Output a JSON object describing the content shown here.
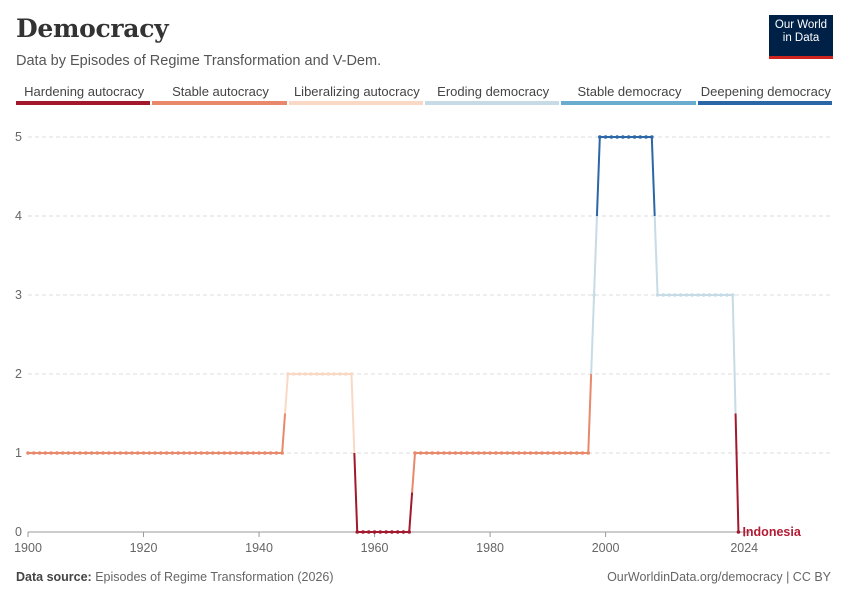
{
  "header": {
    "title": "Democracy",
    "subtitle": "Data by Episodes of Regime Transformation and V-Dem."
  },
  "logo": {
    "line1": "Our World",
    "line2": "in Data"
  },
  "footer": {
    "source_label": "Data source:",
    "source_text": "Episodes of Regime Transformation (2026)",
    "right_text": "OurWorldinData.org/democracy | CC BY"
  },
  "chart_data": {
    "type": "line",
    "title": "Democracy",
    "subtitle": "Data by Episodes of Regime Transformation and V-Dem.",
    "xlabel": "",
    "ylabel": "",
    "xlim": [
      1900,
      2025
    ],
    "ylim": [
      0,
      5
    ],
    "x_ticks": [
      "1900",
      "1920",
      "1940",
      "1960",
      "1980",
      "2000",
      "2024"
    ],
    "y_ticks": [
      "0",
      "1",
      "2",
      "3",
      "4",
      "5"
    ],
    "legend": [
      {
        "label": "Hardening autocracy",
        "value": 0,
        "color": "#a2182d"
      },
      {
        "label": "Stable autocracy",
        "value": 1,
        "color": "#e8896b"
      },
      {
        "label": "Liberalizing autocracy",
        "value": 2,
        "color": "#f9d9c5"
      },
      {
        "label": "Eroding democracy",
        "value": 3,
        "color": "#c6dbe6"
      },
      {
        "label": "Stable democracy",
        "value": 4,
        "color": "#6aaccd"
      },
      {
        "label": "Deepening democracy",
        "value": 5,
        "color": "#2b66a7"
      }
    ],
    "series": [
      {
        "name": "Indonesia",
        "color": "#b31b34",
        "segments": [
          {
            "from": 1900,
            "to": 1944,
            "value": 1
          },
          {
            "from": 1945,
            "to": 1956,
            "value": 2
          },
          {
            "from": 1957,
            "to": 1966,
            "value": 0
          },
          {
            "from": 1967,
            "to": 1997,
            "value": 1
          },
          {
            "from": 1998,
            "to": 1998,
            "value": 3
          },
          {
            "from": 1999,
            "to": 2008,
            "value": 5
          },
          {
            "from": 2009,
            "to": 2022,
            "value": 3
          },
          {
            "from": 2023,
            "to": 2023,
            "value": 0
          }
        ]
      }
    ]
  }
}
